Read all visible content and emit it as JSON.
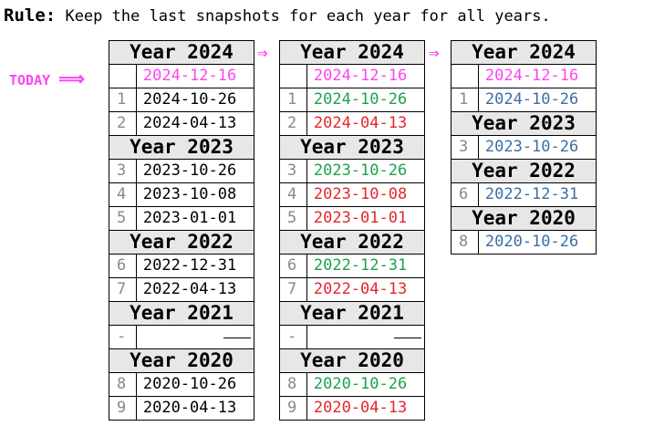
{
  "rule": {
    "prefix": "Rule:",
    "text": "Keep the last snapshots for each year for all years."
  },
  "today_label": "TODAY",
  "today_arrow": "⟹",
  "step_arrow": "⇒",
  "colors": {
    "today": "#ff44ee",
    "keep": "#1aa24a",
    "delete": "#e3262b",
    "result": "#3a6ea5",
    "neutral": "#000000",
    "index": "#888888",
    "header_bg": "#e7e7e7"
  },
  "tables": [
    {
      "groups": [
        {
          "year": "Year 2024",
          "rows": [
            {
              "idx": "",
              "date": "2024-12-16",
              "status": "today"
            },
            {
              "idx": "1",
              "date": "2024-10-26",
              "status": "neutral"
            },
            {
              "idx": "2",
              "date": "2024-04-13",
              "status": "neutral"
            }
          ]
        },
        {
          "year": "Year 2023",
          "rows": [
            {
              "idx": "3",
              "date": "2023-10-26",
              "status": "neutral"
            },
            {
              "idx": "4",
              "date": "2023-10-08",
              "status": "neutral"
            },
            {
              "idx": "5",
              "date": "2023-01-01",
              "status": "neutral"
            }
          ]
        },
        {
          "year": "Year 2022",
          "rows": [
            {
              "idx": "6",
              "date": "2022-12-31",
              "status": "neutral"
            },
            {
              "idx": "7",
              "date": "2022-04-13",
              "status": "neutral"
            }
          ]
        },
        {
          "year": "Year 2021",
          "rows": [
            {
              "idx": "-",
              "date": "",
              "status": "empty"
            }
          ]
        },
        {
          "year": "Year 2020",
          "rows": [
            {
              "idx": "8",
              "date": "2020-10-26",
              "status": "neutral"
            },
            {
              "idx": "9",
              "date": "2020-04-13",
              "status": "neutral"
            }
          ]
        }
      ]
    },
    {
      "groups": [
        {
          "year": "Year 2024",
          "rows": [
            {
              "idx": "",
              "date": "2024-12-16",
              "status": "today"
            },
            {
              "idx": "1",
              "date": "2024-10-26",
              "status": "keep"
            },
            {
              "idx": "2",
              "date": "2024-04-13",
              "status": "delete"
            }
          ]
        },
        {
          "year": "Year 2023",
          "rows": [
            {
              "idx": "3",
              "date": "2023-10-26",
              "status": "keep"
            },
            {
              "idx": "4",
              "date": "2023-10-08",
              "status": "delete"
            },
            {
              "idx": "5",
              "date": "2023-01-01",
              "status": "delete"
            }
          ]
        },
        {
          "year": "Year 2022",
          "rows": [
            {
              "idx": "6",
              "date": "2022-12-31",
              "status": "keep"
            },
            {
              "idx": "7",
              "date": "2022-04-13",
              "status": "delete"
            }
          ]
        },
        {
          "year": "Year 2021",
          "rows": [
            {
              "idx": "-",
              "date": "",
              "status": "empty"
            }
          ]
        },
        {
          "year": "Year 2020",
          "rows": [
            {
              "idx": "8",
              "date": "2020-10-26",
              "status": "keep"
            },
            {
              "idx": "9",
              "date": "2020-04-13",
              "status": "delete"
            }
          ]
        }
      ]
    },
    {
      "groups": [
        {
          "year": "Year 2024",
          "rows": [
            {
              "idx": "",
              "date": "2024-12-16",
              "status": "today"
            },
            {
              "idx": "1",
              "date": "2024-10-26",
              "status": "result"
            }
          ]
        },
        {
          "year": "Year 2023",
          "rows": [
            {
              "idx": "3",
              "date": "2023-10-26",
              "status": "result"
            }
          ]
        },
        {
          "year": "Year 2022",
          "rows": [
            {
              "idx": "6",
              "date": "2022-12-31",
              "status": "result"
            }
          ]
        },
        {
          "year": "Year 2020",
          "rows": [
            {
              "idx": "8",
              "date": "2020-10-26",
              "status": "result"
            }
          ]
        }
      ]
    }
  ]
}
